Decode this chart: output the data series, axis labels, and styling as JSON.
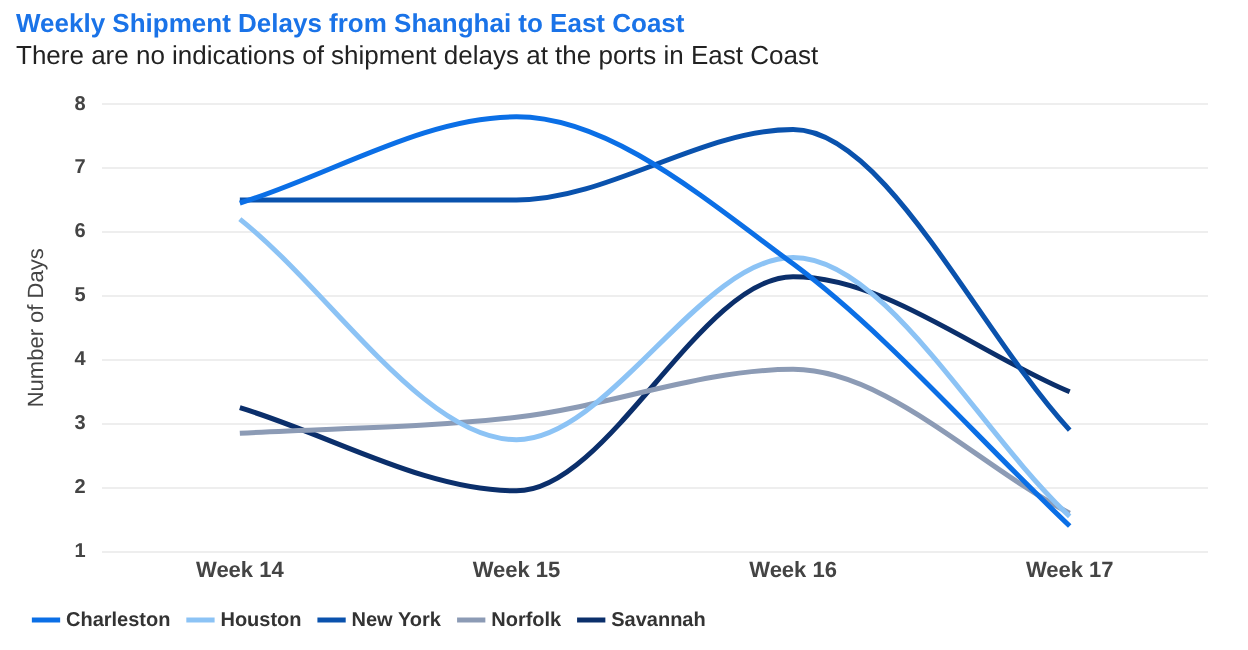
{
  "chart_data": {
    "type": "line",
    "title": "Weekly Shipment Delays from Shanghai to East Coast",
    "subtitle": "There are no indications of shipment delays at the ports in East Coast",
    "ylabel": "Number of Days",
    "categories": [
      "Week 14",
      "Week 15",
      "Week 16",
      "Week 17"
    ],
    "series": [
      {
        "name": "Charleston",
        "color": "#0b6fe6",
        "values": [
          6.45,
          7.8,
          5.5,
          1.4
        ]
      },
      {
        "name": "Houston",
        "color": "#8cc3f5",
        "values": [
          6.2,
          2.75,
          5.6,
          1.55
        ]
      },
      {
        "name": "New York",
        "color": "#0a52ad",
        "values": [
          6.5,
          6.5,
          7.6,
          2.9
        ]
      },
      {
        "name": "Norfolk",
        "color": "#8c9bb5",
        "values": [
          2.85,
          3.1,
          3.85,
          1.6
        ]
      },
      {
        "name": "Savannah",
        "color": "#0b2f6b",
        "values": [
          3.25,
          1.95,
          5.3,
          3.5
        ]
      }
    ],
    "ylim": [
      1,
      8
    ],
    "yticks": [
      1,
      2,
      3,
      4,
      5,
      6,
      7,
      8
    ],
    "grid": "y",
    "legend": "bottom",
    "marker": "none",
    "line_style": "solid"
  }
}
